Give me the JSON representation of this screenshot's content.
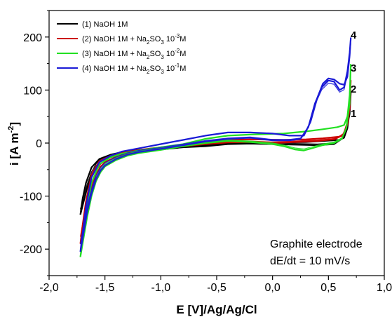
{
  "chart_data": {
    "type": "line",
    "xlabel": "E [V]/Ag/Ag/Cl",
    "ylabel_main": "i [A m",
    "ylabel_sup": "-2",
    "ylabel_end": "]",
    "xlim": [
      -2.0,
      1.0
    ],
    "ylim": [
      -250,
      250
    ],
    "xticks": [
      "-2,0",
      "-1,5",
      "-1,0",
      "-0,5",
      "0,0",
      "0,5",
      "1,0"
    ],
    "xtick_values": [
      -2.0,
      -1.5,
      -1.0,
      -0.5,
      0.0,
      0.5,
      1.0
    ],
    "yticks": [
      "200",
      "100",
      "0",
      "-100",
      "-200"
    ],
    "ytick_values": [
      200,
      100,
      0,
      -100,
      -200
    ],
    "grid": false,
    "legend_position": "top-left",
    "annotations": {
      "line1": "Graphite electrode",
      "line2": "dE/dt = 10 mV/s"
    },
    "series": [
      {
        "name_parts": [
          "(1) NaOH 1M"
        ],
        "label": "1",
        "color": "#000000",
        "forward": [
          [
            -1.72,
            -135
          ],
          [
            -1.7,
            -118
          ],
          [
            -1.66,
            -85
          ],
          [
            -1.62,
            -60
          ],
          [
            -1.58,
            -44
          ],
          [
            -1.55,
            -36
          ],
          [
            -1.5,
            -30
          ],
          [
            -1.4,
            -24
          ],
          [
            -1.3,
            -19
          ],
          [
            -1.2,
            -16
          ],
          [
            -1.0,
            -12
          ],
          [
            -0.8,
            -8
          ],
          [
            -0.6,
            -6
          ],
          [
            -0.4,
            -2
          ],
          [
            -0.2,
            -1
          ],
          [
            0.0,
            -2
          ],
          [
            0.2,
            -3
          ],
          [
            0.4,
            -4
          ],
          [
            0.55,
            -2
          ],
          [
            0.62,
            8
          ],
          [
            0.66,
            25
          ],
          [
            0.69,
            55
          ],
          [
            0.7,
            95
          ]
        ],
        "reverse": [
          [
            0.7,
            95
          ],
          [
            0.69,
            60
          ],
          [
            0.67,
            28
          ],
          [
            0.64,
            10
          ],
          [
            0.6,
            6
          ],
          [
            0.45,
            4
          ],
          [
            0.3,
            2
          ],
          [
            0.1,
            1
          ],
          [
            -0.2,
            0
          ],
          [
            -0.5,
            -2
          ],
          [
            -0.8,
            -6
          ],
          [
            -1.0,
            -9
          ],
          [
            -1.2,
            -13
          ],
          [
            -1.35,
            -17
          ],
          [
            -1.45,
            -22
          ],
          [
            -1.55,
            -30
          ],
          [
            -1.62,
            -46
          ],
          [
            -1.67,
            -75
          ],
          [
            -1.7,
            -105
          ],
          [
            -1.72,
            -135
          ]
        ]
      },
      {
        "name_parts": [
          "(2) NaOH 1M + Na",
          "2",
          "SO",
          "3",
          " 10",
          "-3",
          "M"
        ],
        "label": "2",
        "color": "#cc0000",
        "forward": [
          [
            -1.72,
            -190
          ],
          [
            -1.7,
            -165
          ],
          [
            -1.66,
            -120
          ],
          [
            -1.62,
            -85
          ],
          [
            -1.58,
            -60
          ],
          [
            -1.54,
            -45
          ],
          [
            -1.5,
            -36
          ],
          [
            -1.4,
            -26
          ],
          [
            -1.3,
            -20
          ],
          [
            -1.2,
            -16
          ],
          [
            -1.0,
            -11
          ],
          [
            -0.8,
            -6
          ],
          [
            -0.6,
            -2
          ],
          [
            -0.4,
            1
          ],
          [
            -0.2,
            2
          ],
          [
            0.0,
            0
          ],
          [
            0.2,
            2
          ],
          [
            0.4,
            4
          ],
          [
            0.55,
            7
          ],
          [
            0.63,
            15
          ],
          [
            0.67,
            35
          ],
          [
            0.69,
            65
          ],
          [
            0.7,
            118
          ]
        ],
        "reverse": [
          [
            0.7,
            118
          ],
          [
            0.69,
            75
          ],
          [
            0.67,
            40
          ],
          [
            0.64,
            18
          ],
          [
            0.6,
            12
          ],
          [
            0.45,
            9
          ],
          [
            0.3,
            7
          ],
          [
            0.1,
            6
          ],
          [
            -0.2,
            7
          ],
          [
            -0.4,
            6
          ],
          [
            -0.6,
            2
          ],
          [
            -0.8,
            -4
          ],
          [
            -1.0,
            -8
          ],
          [
            -1.2,
            -13
          ],
          [
            -1.35,
            -18
          ],
          [
            -1.45,
            -24
          ],
          [
            -1.55,
            -34
          ],
          [
            -1.62,
            -60
          ],
          [
            -1.67,
            -110
          ],
          [
            -1.7,
            -155
          ],
          [
            -1.72,
            -190
          ]
        ]
      },
      {
        "name_parts": [
          "(3) NaOH 1M + Na",
          "2",
          "SO",
          "3",
          " 10",
          "-2",
          "M"
        ],
        "label": "3",
        "color": "#22e022",
        "forward": [
          [
            -1.72,
            -215
          ],
          [
            -1.7,
            -190
          ],
          [
            -1.66,
            -140
          ],
          [
            -1.62,
            -100
          ],
          [
            -1.58,
            -72
          ],
          [
            -1.54,
            -55
          ],
          [
            -1.5,
            -44
          ],
          [
            -1.4,
            -32
          ],
          [
            -1.3,
            -24
          ],
          [
            -1.2,
            -19
          ],
          [
            -1.0,
            -13
          ],
          [
            -0.8,
            -6
          ],
          [
            -0.6,
            0
          ],
          [
            -0.4,
            4
          ],
          [
            -0.2,
            2
          ],
          [
            0.0,
            -2
          ],
          [
            0.1,
            -6
          ],
          [
            0.2,
            -12
          ],
          [
            0.28,
            -14
          ],
          [
            0.35,
            -10
          ],
          [
            0.45,
            -4
          ],
          [
            0.55,
            0
          ],
          [
            0.62,
            8
          ],
          [
            0.66,
            28
          ],
          [
            0.69,
            75
          ],
          [
            0.7,
            148
          ]
        ],
        "reverse": [
          [
            0.7,
            148
          ],
          [
            0.69,
            90
          ],
          [
            0.67,
            50
          ],
          [
            0.64,
            34
          ],
          [
            0.58,
            30
          ],
          [
            0.45,
            26
          ],
          [
            0.3,
            22
          ],
          [
            0.1,
            18
          ],
          [
            -0.2,
            16
          ],
          [
            -0.4,
            14
          ],
          [
            -0.6,
            8
          ],
          [
            -0.8,
            -2
          ],
          [
            -1.0,
            -8
          ],
          [
            -1.2,
            -14
          ],
          [
            -1.35,
            -20
          ],
          [
            -1.45,
            -27
          ],
          [
            -1.55,
            -40
          ],
          [
            -1.62,
            -75
          ],
          [
            -1.67,
            -130
          ],
          [
            -1.7,
            -180
          ],
          [
            -1.72,
            -215
          ]
        ]
      },
      {
        "name_parts": [
          "(4) NaOH 1M + Na",
          "2",
          "SO",
          "3",
          " 10",
          "-1",
          "M"
        ],
        "label": "4",
        "color": "#1a1ad6",
        "forward": [
          [
            -1.72,
            -205
          ],
          [
            -1.7,
            -180
          ],
          [
            -1.66,
            -130
          ],
          [
            -1.62,
            -95
          ],
          [
            -1.58,
            -68
          ],
          [
            -1.54,
            -52
          ],
          [
            -1.5,
            -42
          ],
          [
            -1.4,
            -30
          ],
          [
            -1.3,
            -22
          ],
          [
            -1.2,
            -17
          ],
          [
            -1.0,
            -11
          ],
          [
            -0.8,
            -4
          ],
          [
            -0.6,
            3
          ],
          [
            -0.4,
            8
          ],
          [
            -0.2,
            10
          ],
          [
            0.0,
            5
          ],
          [
            0.15,
            5
          ],
          [
            0.25,
            8
          ],
          [
            0.32,
            30
          ],
          [
            0.38,
            75
          ],
          [
            0.44,
            105
          ],
          [
            0.5,
            118
          ],
          [
            0.55,
            116
          ],
          [
            0.6,
            100
          ],
          [
            0.64,
            105
          ],
          [
            0.67,
            135
          ],
          [
            0.69,
            170
          ],
          [
            0.7,
            198
          ]
        ],
        "reverse": [
          [
            0.7,
            198
          ],
          [
            0.69,
            165
          ],
          [
            0.67,
            125
          ],
          [
            0.64,
            110
          ],
          [
            0.6,
            112
          ],
          [
            0.55,
            120
          ],
          [
            0.5,
            122
          ],
          [
            0.45,
            112
          ],
          [
            0.4,
            85
          ],
          [
            0.34,
            40
          ],
          [
            0.28,
            14
          ],
          [
            0.15,
            14
          ],
          [
            0.0,
            18
          ],
          [
            -0.2,
            20
          ],
          [
            -0.4,
            20
          ],
          [
            -0.6,
            14
          ],
          [
            -0.8,
            6
          ],
          [
            -1.0,
            -2
          ],
          [
            -1.2,
            -10
          ],
          [
            -1.35,
            -16
          ],
          [
            -1.45,
            -24
          ],
          [
            -1.55,
            -36
          ],
          [
            -1.62,
            -65
          ],
          [
            -1.67,
            -120
          ],
          [
            -1.7,
            -170
          ],
          [
            -1.72,
            -205
          ]
        ]
      }
    ]
  }
}
